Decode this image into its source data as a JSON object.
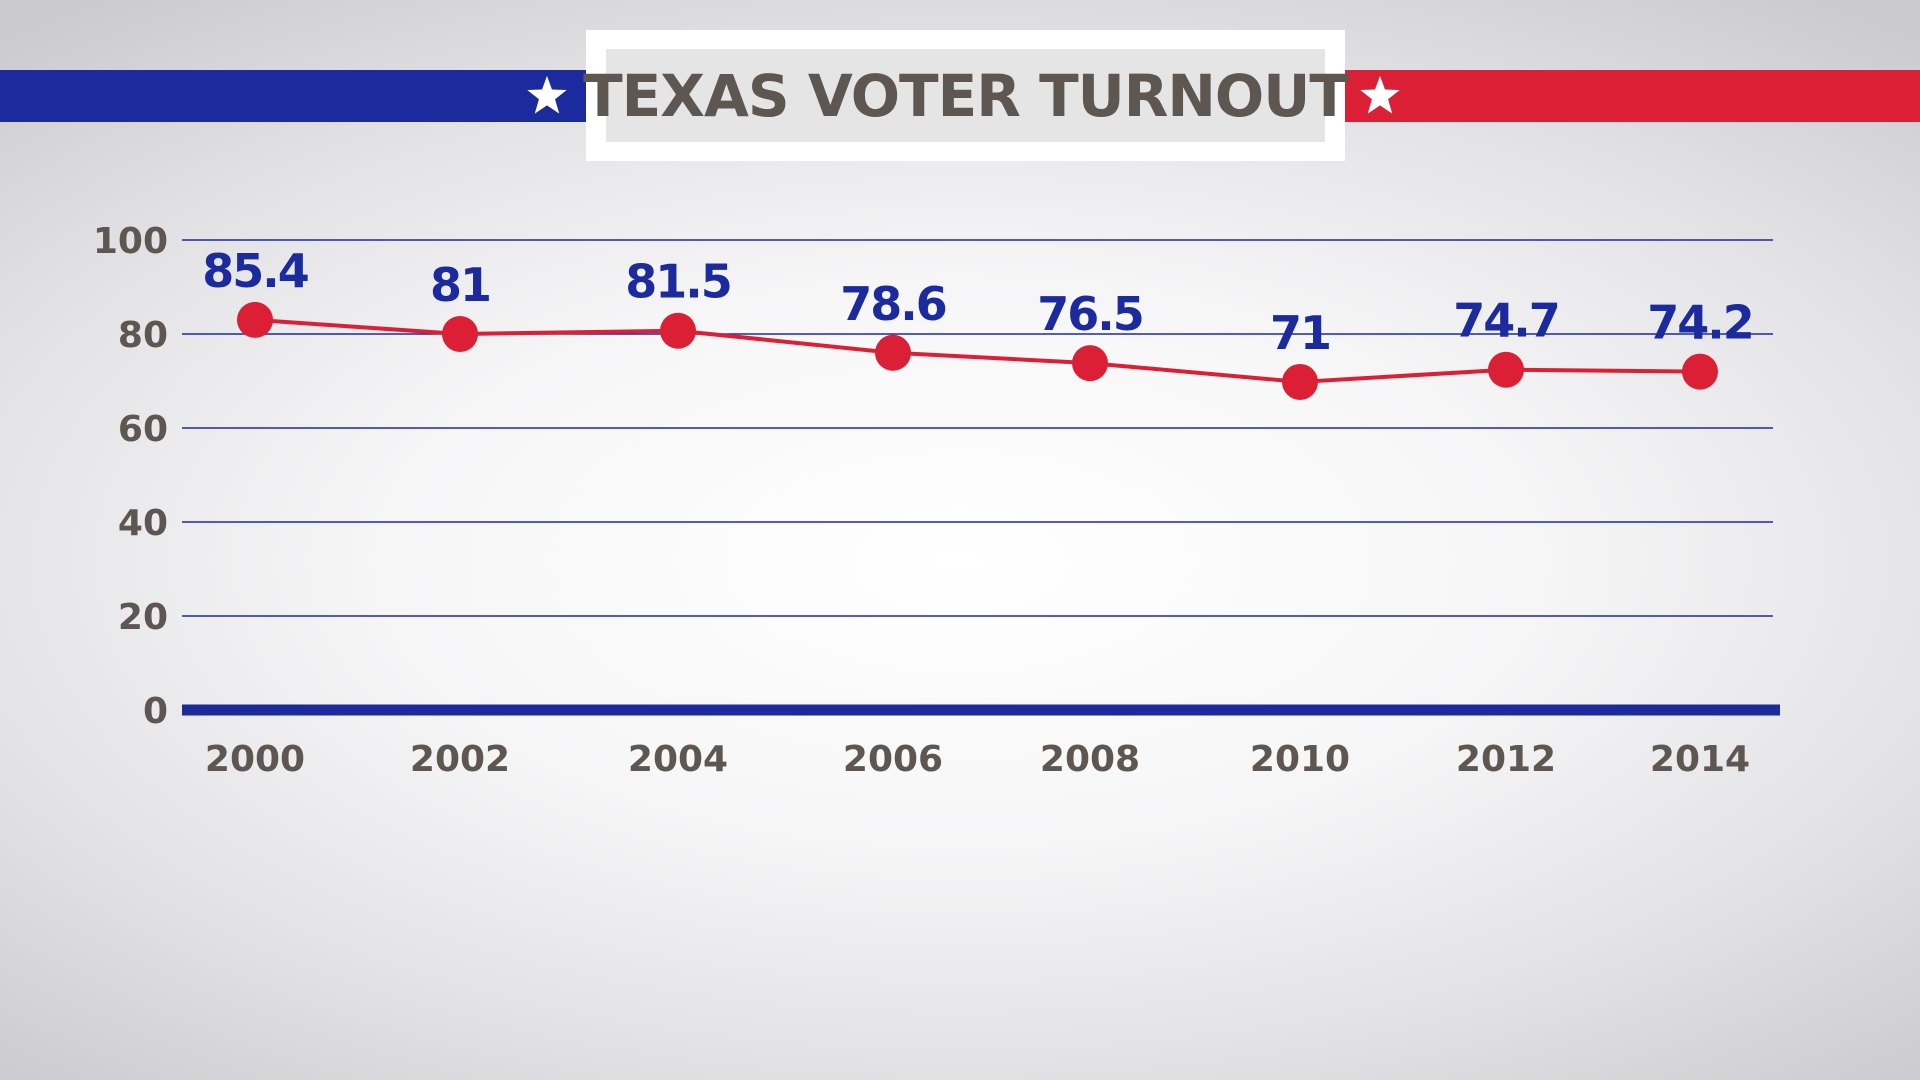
{
  "header": {
    "title": "TEXAS VOTER TURNOUT",
    "left_band_color": "#1b2a9c",
    "right_band_color": "#db2035",
    "left_icon": "star-icon",
    "right_icon": "star-icon"
  },
  "chart_data": {
    "type": "line",
    "title": "TEXAS VOTER TURNOUT",
    "xlabel": "",
    "ylabel": "",
    "categories": [
      "2000",
      "2002",
      "2004",
      "2006",
      "2008",
      "2010",
      "2012",
      "2014"
    ],
    "values": [
      85.4,
      81,
      81.5,
      78.6,
      76.5,
      71,
      74.7,
      74.2
    ],
    "marker_values": [
      83,
      80,
      80.7,
      76,
      73.8,
      69.8,
      72.4,
      72
    ],
    "data_labels": [
      "85.4",
      "81",
      "81.5",
      "78.6",
      "76.5",
      "71",
      "74.7",
      "74.2"
    ],
    "y_ticks": [
      "0",
      "20",
      "40",
      "60",
      "80",
      "100"
    ],
    "ylim": [
      0,
      100
    ],
    "grid": true,
    "legend": "none",
    "colors": {
      "line": "#db2035",
      "marker": "#db2035",
      "data_label": "#1b2a9c",
      "gridline": "#1b2a9c",
      "axis": "#1b2a9c",
      "tick_text": "#5e5650"
    }
  }
}
